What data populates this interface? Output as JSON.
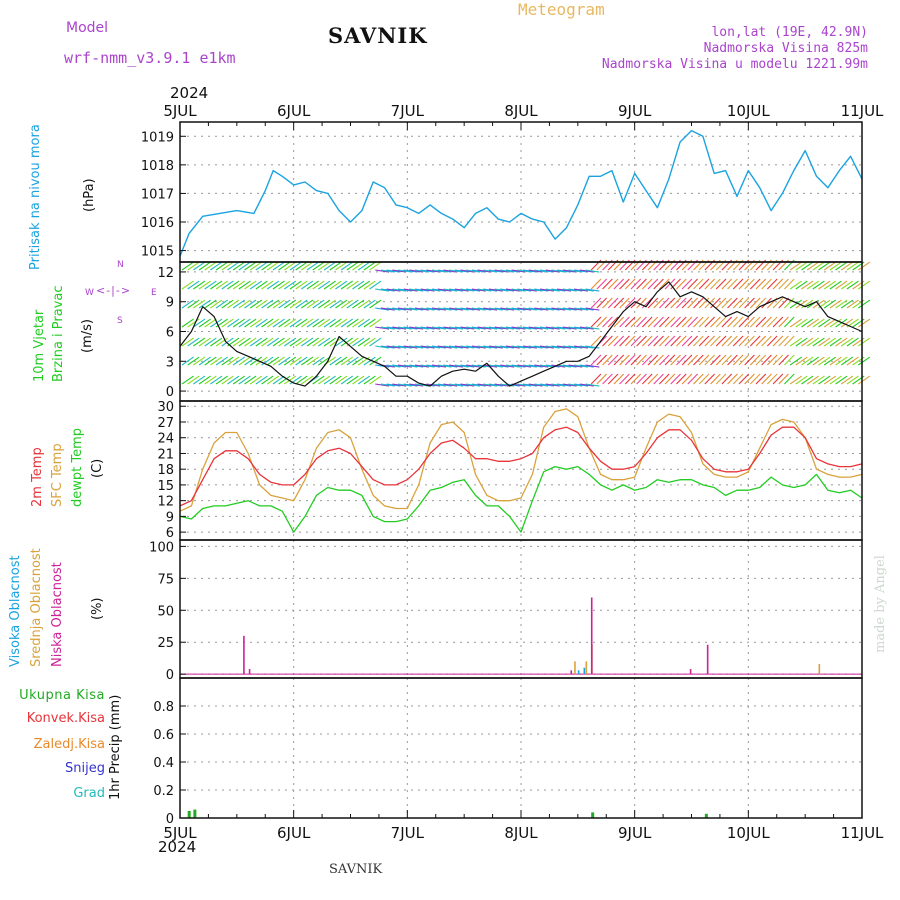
{
  "header": {
    "model_label": "Model",
    "model_name": "wrf-nmm_v3.9.1  e1km",
    "station": "SAVNIK",
    "product": "Meteogram",
    "lonlat": "lon,lat (19E, 42.9N)",
    "elevation": "Nadmorska Visina 825m",
    "model_elevation": "Nadmorska Visina u modelu 1221.99m",
    "year": "2024"
  },
  "footer": {
    "station": "SAVNIK",
    "credit": "made by Angel"
  },
  "colors": {
    "pressure": "#1aa3e0",
    "temp2m": "#e8343a",
    "sfc_temp": "#d9a23c",
    "dewpoint": "#22cc22",
    "wind_line": "#111111",
    "wind_max": "#e8343a",
    "high_cloud": "#1aa3e0",
    "mid_cloud": "#d9a23c",
    "low_cloud": "#cc2299",
    "total_precip": "#22aa22",
    "conv_precip": "#e8343a",
    "frozen_precip": "#e88a2a",
    "snow": "#3333cc",
    "graupel": "#22bbbb",
    "header_purple": "#aa44cc",
    "header_orange": "#e8b860"
  },
  "chart_data": [
    {
      "type": "line",
      "title": "Pritisak na nivou mora",
      "ylabel": "(hPa)",
      "x_ticks": [
        "5JUL",
        "6JUL",
        "7JUL",
        "8JUL",
        "9JUL",
        "10JUL",
        "11JUL"
      ],
      "ylim": [
        1014.6,
        1019.5
      ],
      "y_ticks": [
        1015,
        1016,
        1017,
        1018,
        1019
      ],
      "grid": true,
      "series": [
        {
          "name": "Pritisak na nivou mora",
          "x": [
            0,
            0.08,
            0.2,
            0.35,
            0.5,
            0.65,
            0.75,
            0.82,
            0.9,
            1.0,
            1.1,
            1.2,
            1.3,
            1.4,
            1.5,
            1.6,
            1.7,
            1.8,
            1.85,
            1.9,
            2.0,
            2.1,
            2.2,
            2.3,
            2.4,
            2.5,
            2.6,
            2.7,
            2.8,
            2.9,
            3.0,
            3.1,
            3.2,
            3.3,
            3.4,
            3.5,
            3.6,
            3.65,
            3.7,
            3.8,
            3.9,
            4.0,
            4.1,
            4.2,
            4.3,
            4.4,
            4.5,
            4.6,
            4.7,
            4.8,
            4.9,
            5.0,
            5.1,
            5.15,
            5.2,
            5.3,
            5.4,
            5.5,
            5.6,
            5.7,
            5.8,
            5.9,
            6.0
          ],
          "values": [
            1014.8,
            1015.6,
            1016.2,
            1016.3,
            1016.4,
            1016.3,
            1017.1,
            1017.8,
            1017.6,
            1017.3,
            1017.4,
            1017.1,
            1017.0,
            1016.4,
            1016.0,
            1016.4,
            1017.4,
            1017.2,
            1016.9,
            1016.6,
            1016.5,
            1016.3,
            1016.6,
            1016.3,
            1016.1,
            1015.8,
            1016.3,
            1016.5,
            1016.1,
            1016.0,
            1016.3,
            1016.1,
            1016.0,
            1015.4,
            1015.8,
            1016.6,
            1017.6,
            1017.6,
            1017.6,
            1017.8,
            1016.7,
            1017.7,
            1017.1,
            1016.5,
            1017.5,
            1018.8,
            1019.2,
            1019.0,
            1017.7,
            1017.8,
            1016.9,
            1017.8,
            1017.2,
            1016.8,
            1016.4,
            1017.0,
            1017.8,
            1018.5,
            1017.6,
            1017.2,
            1017.8,
            1018.3,
            1017.5
          ]
        }
      ]
    },
    {
      "type": "line",
      "title": "10m Vjetar Brzina i Pravac",
      "ylabel": "(m/s)",
      "compass": {
        "north": "N",
        "west": "W",
        "east": "E",
        "south": "S"
      },
      "ylim": [
        -1,
        13
      ],
      "y_ticks": [
        0,
        3,
        6,
        9,
        12
      ],
      "grid": true,
      "series": [
        {
          "name": "Brzina",
          "x": [
            0,
            0.1,
            0.2,
            0.3,
            0.4,
            0.5,
            0.6,
            0.7,
            0.8,
            0.9,
            1.0,
            1.1,
            1.2,
            1.3,
            1.4,
            1.5,
            1.6,
            1.7,
            1.8,
            1.9,
            2.0,
            2.1,
            2.2,
            2.3,
            2.4,
            2.5,
            2.6,
            2.7,
            2.8,
            2.9,
            3.0,
            3.1,
            3.2,
            3.3,
            3.4,
            3.5,
            3.6,
            3.7,
            3.8,
            3.9,
            4.0,
            4.1,
            4.2,
            4.3,
            4.4,
            4.5,
            4.6,
            4.7,
            4.8,
            4.9,
            5.0,
            5.1,
            5.2,
            5.3,
            5.4,
            5.5,
            5.6,
            5.7,
            5.8,
            5.9,
            6.0
          ],
          "values": [
            4.5,
            6.0,
            8.5,
            7.5,
            5.0,
            4.0,
            3.5,
            3.0,
            2.5,
            1.5,
            0.8,
            0.5,
            1.5,
            3.0,
            5.5,
            4.5,
            3.5,
            3.0,
            2.5,
            1.5,
            1.5,
            0.8,
            0.5,
            1.5,
            2.0,
            2.2,
            2.0,
            2.8,
            1.5,
            0.5,
            1.0,
            1.5,
            2.0,
            2.5,
            3.0,
            3.0,
            3.5,
            5.0,
            6.5,
            8.0,
            9.0,
            8.5,
            10.0,
            11.0,
            9.5,
            10.0,
            9.5,
            8.5,
            7.5,
            8.0,
            7.5,
            8.5,
            9.0,
            9.5,
            9.0,
            8.5,
            9.0,
            7.5,
            7.0,
            6.5,
            6.0
          ]
        }
      ]
    },
    {
      "type": "line",
      "title": "2m Temp / SFC Temp / dewpt Temp",
      "ylabel": "(C)",
      "ylim": [
        4.5,
        31
      ],
      "y_ticks": [
        6,
        9,
        12,
        15,
        18,
        21,
        24,
        27,
        30
      ],
      "grid": true,
      "series": [
        {
          "name": "2m Temp",
          "x": [
            0,
            0.1,
            0.2,
            0.3,
            0.4,
            0.5,
            0.6,
            0.7,
            0.8,
            0.9,
            1.0,
            1.1,
            1.2,
            1.3,
            1.4,
            1.5,
            1.6,
            1.7,
            1.8,
            1.9,
            2.0,
            2.1,
            2.2,
            2.3,
            2.4,
            2.5,
            2.6,
            2.7,
            2.8,
            2.9,
            3.0,
            3.1,
            3.2,
            3.3,
            3.4,
            3.5,
            3.6,
            3.7,
            3.8,
            3.9,
            4.0,
            4.1,
            4.2,
            4.3,
            4.4,
            4.5,
            4.6,
            4.7,
            4.8,
            4.9,
            5.0,
            5.1,
            5.2,
            5.3,
            5.4,
            5.5,
            5.6,
            5.7,
            5.8,
            5.9,
            6.0
          ],
          "values": [
            11,
            12,
            16,
            20,
            21.5,
            21.5,
            20,
            17,
            15.5,
            15,
            15,
            17,
            20,
            21.5,
            22,
            21,
            18.5,
            16,
            15,
            15,
            16,
            18,
            21,
            23,
            23.5,
            22,
            20,
            20,
            19.5,
            19.5,
            20,
            21,
            24,
            25.5,
            26,
            25,
            22,
            19.5,
            18,
            18,
            18.5,
            21,
            24,
            25.5,
            25.5,
            23.5,
            20,
            18,
            17.5,
            17.5,
            18,
            21,
            24.5,
            26,
            26,
            24,
            20,
            19,
            18.5,
            18.5,
            19
          ]
        },
        {
          "name": "SFC Temp",
          "x": [
            0,
            0.1,
            0.2,
            0.3,
            0.4,
            0.5,
            0.6,
            0.7,
            0.8,
            0.9,
            1.0,
            1.1,
            1.2,
            1.3,
            1.4,
            1.5,
            1.6,
            1.7,
            1.8,
            1.9,
            2.0,
            2.1,
            2.2,
            2.3,
            2.4,
            2.5,
            2.6,
            2.7,
            2.8,
            2.9,
            3.0,
            3.1,
            3.2,
            3.3,
            3.4,
            3.5,
            3.6,
            3.7,
            3.8,
            3.9,
            4.0,
            4.1,
            4.2,
            4.3,
            4.4,
            4.5,
            4.6,
            4.7,
            4.8,
            4.9,
            5.0,
            5.1,
            5.2,
            5.3,
            5.4,
            5.5,
            5.6,
            5.7,
            5.8,
            5.9,
            6.0
          ],
          "values": [
            10,
            11,
            18,
            23,
            25,
            25,
            21,
            15,
            13,
            12.5,
            12,
            16,
            22,
            25,
            25.5,
            24,
            18,
            13,
            11,
            10.5,
            10.5,
            15,
            23,
            26.5,
            27,
            25,
            17,
            13,
            12,
            12,
            12.5,
            17,
            26,
            29,
            29.5,
            28,
            22,
            17,
            16,
            16,
            16.5,
            22,
            27,
            28.5,
            28,
            25,
            19,
            17,
            16.5,
            16.5,
            17.5,
            22,
            26.5,
            27.5,
            27,
            24,
            18,
            17,
            16.5,
            16.5,
            17
          ]
        },
        {
          "name": "dewpt Temp",
          "x": [
            0,
            0.1,
            0.2,
            0.3,
            0.4,
            0.5,
            0.6,
            0.7,
            0.8,
            0.9,
            1.0,
            1.1,
            1.2,
            1.3,
            1.4,
            1.5,
            1.6,
            1.7,
            1.8,
            1.9,
            2.0,
            2.1,
            2.2,
            2.3,
            2.4,
            2.5,
            2.6,
            2.7,
            2.8,
            2.9,
            3.0,
            3.1,
            3.2,
            3.3,
            3.4,
            3.5,
            3.6,
            3.7,
            3.8,
            3.9,
            4.0,
            4.1,
            4.2,
            4.3,
            4.4,
            4.5,
            4.6,
            4.7,
            4.8,
            4.9,
            5.0,
            5.1,
            5.2,
            5.3,
            5.4,
            5.5,
            5.6,
            5.7,
            5.8,
            5.9,
            6.0
          ],
          "values": [
            9,
            8.5,
            10.5,
            11,
            11,
            11.5,
            12,
            11,
            11,
            10,
            6,
            9,
            13,
            14.5,
            14,
            14,
            13,
            9,
            8,
            8,
            8.5,
            11,
            14,
            14.5,
            15.5,
            16,
            13,
            11,
            11,
            9,
            6,
            12,
            17.5,
            18.5,
            18,
            18.5,
            17,
            15,
            14,
            15,
            14,
            14.5,
            16,
            15.5,
            16,
            16,
            15,
            14.5,
            13,
            14,
            14,
            14.5,
            16.5,
            15,
            14.5,
            15,
            17,
            14,
            13.5,
            14,
            12.5
          ]
        }
      ]
    },
    {
      "type": "bar",
      "title": "Visoka Oblacnost / Srednja Oblacnost / Niska Oblacnost",
      "ylabel": "(%)",
      "ylim": [
        -3,
        105
      ],
      "y_ticks": [
        0,
        25,
        50,
        75,
        100
      ],
      "grid": true,
      "series": [
        {
          "name": "Visoka Oblacnost",
          "x": [
            3.5,
            3.55
          ],
          "values": [
            3,
            5
          ]
        },
        {
          "name": "Srednja Oblacnost",
          "x": [
            3.45,
            3.55,
            3.6,
            5.6
          ],
          "values": [
            10,
            10,
            23,
            8
          ]
        },
        {
          "name": "Niska Oblacnost",
          "x": [
            0.52,
            0.57,
            3.4,
            3.58,
            4.45,
            4.6
          ],
          "values": [
            30,
            4,
            3,
            60,
            4,
            23
          ]
        }
      ]
    },
    {
      "type": "bar",
      "title": "1hr Precip",
      "ylabel": "(mm)",
      "legend": [
        "Ukupna Kisa",
        "Konvek.Kisa",
        "Zaledj.Kisa",
        "Snijeg",
        "Grad"
      ],
      "ylim": [
        0,
        1.0
      ],
      "y_ticks": [
        0,
        0.2,
        0.4,
        0.6,
        0.8
      ],
      "grid": true,
      "series": [
        {
          "name": "Ukupna Kisa",
          "x": [
            0.05,
            0.1,
            3.6,
            4.6
          ],
          "values": [
            0.05,
            0.06,
            0.04,
            0.03
          ]
        }
      ]
    }
  ]
}
